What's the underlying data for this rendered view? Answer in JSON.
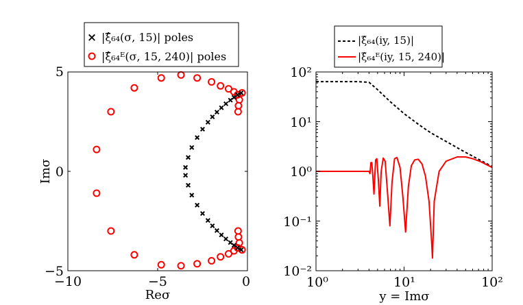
{
  "figure": {
    "background": "#ffffff"
  },
  "chart_data": [
    {
      "type": "scatter",
      "xlabel": "Reσ",
      "ylabel": "Imσ",
      "xlim": [
        -10,
        0
      ],
      "ylim": [
        -5,
        5
      ],
      "xticks": [
        -10,
        -5,
        0
      ],
      "yticks": [
        -5,
        0,
        5
      ],
      "xtick_labels": [
        "−10",
        "−5",
        "0"
      ],
      "ytick_labels": [
        "−5",
        "0",
        "5"
      ],
      "grid": false,
      "legend_position": "above plot",
      "series": [
        {
          "name": "|ξ̂₆₄(σ, 15)| poles",
          "marker": "x",
          "color": "#000000",
          "points": [
            [
              -0.35,
              3.95
            ],
            [
              -0.55,
              3.85
            ],
            [
              -0.75,
              3.72
            ],
            [
              -0.95,
              3.58
            ],
            [
              -1.2,
              3.4
            ],
            [
              -1.45,
              3.2
            ],
            [
              -1.7,
              2.98
            ],
            [
              -1.95,
              2.74
            ],
            [
              -2.2,
              2.47
            ],
            [
              -2.5,
              2.12
            ],
            [
              -2.8,
              1.7
            ],
            [
              -3.1,
              1.2
            ],
            [
              -3.3,
              0.7
            ],
            [
              -3.45,
              0.2
            ],
            [
              -3.45,
              -0.2
            ],
            [
              -3.3,
              -0.7
            ],
            [
              -3.1,
              -1.2
            ],
            [
              -2.8,
              -1.7
            ],
            [
              -2.5,
              -2.12
            ],
            [
              -2.2,
              -2.47
            ],
            [
              -1.95,
              -2.74
            ],
            [
              -1.7,
              -2.98
            ],
            [
              -1.45,
              -3.2
            ],
            [
              -1.2,
              -3.4
            ],
            [
              -0.95,
              -3.58
            ],
            [
              -0.75,
              -3.72
            ],
            [
              -0.55,
              -3.85
            ],
            [
              -0.35,
              -3.95
            ]
          ]
        },
        {
          "name": "|ξ̂₆₄ᴱ(σ, 15, 240)| poles",
          "marker": "o",
          "color": "#ff0000",
          "points": [
            [
              -8.4,
              1.1
            ],
            [
              -8.4,
              -1.1
            ],
            [
              -7.6,
              3.0
            ],
            [
              -7.6,
              -3.0
            ],
            [
              -6.3,
              4.2
            ],
            [
              -6.3,
              -4.2
            ],
            [
              -4.8,
              4.7
            ],
            [
              -4.8,
              -4.7
            ],
            [
              -3.7,
              4.85
            ],
            [
              -3.7,
              -4.75
            ],
            [
              -2.8,
              4.7
            ],
            [
              -2.8,
              -4.65
            ],
            [
              -2.0,
              4.5
            ],
            [
              -2.0,
              -4.5
            ],
            [
              -1.5,
              4.3
            ],
            [
              -1.5,
              -4.3
            ],
            [
              -1.05,
              4.15
            ],
            [
              -1.05,
              -4.15
            ],
            [
              -0.75,
              4.0
            ],
            [
              -0.75,
              -4.0
            ],
            [
              -0.55,
              3.85
            ],
            [
              -0.55,
              -3.85
            ],
            [
              -0.3,
              3.95
            ],
            [
              -0.3,
              -3.95
            ],
            [
              -0.45,
              3.6
            ],
            [
              -0.45,
              -3.6
            ],
            [
              -0.5,
              3.3
            ],
            [
              -0.5,
              -3.3
            ],
            [
              -0.52,
              3.0
            ],
            [
              -0.52,
              -3.0
            ]
          ]
        }
      ]
    },
    {
      "type": "line",
      "xlabel": "y = Imσ",
      "xscale": "log",
      "yscale": "log",
      "xlim": [
        1,
        100
      ],
      "ylim": [
        0.01,
        100
      ],
      "xticks": [
        1,
        10,
        100
      ],
      "yticks": [
        0.01,
        0.1,
        1,
        10,
        100
      ],
      "xtick_labels": [
        "10⁰",
        "10¹",
        "10²"
      ],
      "ytick_labels": [
        "10⁻²",
        "10⁻¹",
        "10⁰",
        "10¹",
        "10²"
      ],
      "grid": false,
      "legend_position": "above plot",
      "series": [
        {
          "name": "|ξ̂₆₄(iy, 15)|",
          "style": "dashed",
          "color": "#000000",
          "x": [
            1,
            2,
            3,
            4,
            5,
            7,
            10,
            15,
            20,
            30,
            50,
            70,
            100
          ],
          "y": [
            64,
            64,
            64,
            62,
            44,
            25,
            14.5,
            8.5,
            6.0,
            4.0,
            2.4,
            1.75,
            1.25
          ]
        },
        {
          "name": "|ξ̂₆₄ᴱ(iy, 15, 240)|",
          "style": "solid",
          "color": "#ff0000",
          "x": [
            1,
            4.0,
            4.1,
            4.2,
            4.3,
            4.4,
            4.55,
            4.75,
            4.9,
            5.1,
            5.3,
            5.5,
            5.8,
            6.1,
            6.5,
            6.9,
            7.3,
            7.8,
            8.3,
            9.0,
            9.7,
            10.4,
            11.2,
            12.1,
            13.2,
            14.5,
            16,
            17.5,
            19.2,
            20.5,
            21.0,
            22,
            25,
            30,
            40,
            50,
            60,
            75,
            100
          ],
          "y": [
            1.0,
            1.0,
            0.9,
            1.5,
            1.5,
            0.9,
            0.35,
            1.7,
            1.8,
            0.7,
            0.2,
            1.0,
            1.85,
            1.6,
            0.35,
            0.08,
            0.6,
            1.8,
            1.9,
            1.2,
            0.3,
            0.06,
            0.5,
            1.3,
            1.7,
            1.75,
            1.4,
            0.8,
            0.25,
            0.04,
            0.018,
            0.25,
            1.0,
            1.6,
            1.95,
            1.95,
            1.8,
            1.55,
            1.2
          ]
        }
      ]
    }
  ]
}
